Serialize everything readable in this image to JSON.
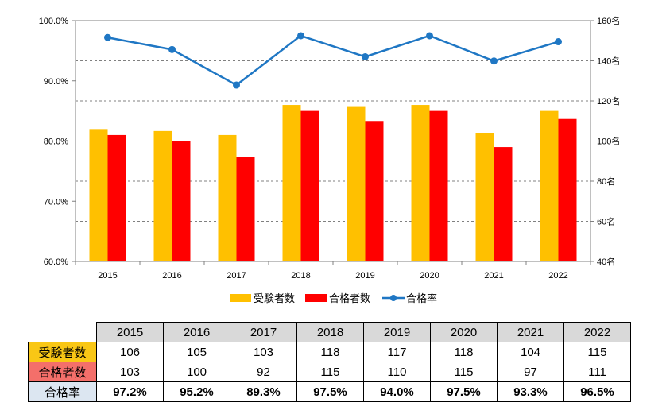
{
  "chart_data": {
    "type": "bar+line",
    "categories": [
      "2015",
      "2016",
      "2017",
      "2018",
      "2019",
      "2020",
      "2021",
      "2022"
    ],
    "series": [
      {
        "name": "受験者数",
        "type": "bar",
        "axis": "right",
        "color": "#ffc000",
        "values": [
          106,
          105,
          103,
          118,
          117,
          118,
          104,
          115
        ]
      },
      {
        "name": "合格者数",
        "type": "bar",
        "axis": "right",
        "color": "#ff0000",
        "values": [
          103,
          100,
          92,
          115,
          110,
          115,
          97,
          111
        ]
      },
      {
        "name": "合格率",
        "type": "line",
        "axis": "left",
        "color": "#1f77c4",
        "values": [
          97.2,
          95.2,
          89.3,
          97.5,
          94.0,
          97.5,
          93.3,
          96.5
        ]
      }
    ],
    "left_axis": {
      "ylim": [
        60,
        100
      ],
      "ticks": [
        "60.0%",
        "70.0%",
        "80.0%",
        "90.0%",
        "100.0%"
      ]
    },
    "right_axis": {
      "ylim": [
        40,
        160
      ],
      "ticks": [
        "40名",
        "60名",
        "80名",
        "100名",
        "120名",
        "140名",
        "160名"
      ]
    },
    "legend_position": "bottom"
  },
  "table": {
    "years": [
      "2015",
      "2016",
      "2017",
      "2018",
      "2019",
      "2020",
      "2021",
      "2022"
    ],
    "rows": [
      {
        "label": "受験者数",
        "cells": [
          "106",
          "105",
          "103",
          "118",
          "117",
          "118",
          "104",
          "115"
        ]
      },
      {
        "label": "合格者数",
        "cells": [
          "103",
          "100",
          "92",
          "115",
          "110",
          "115",
          "97",
          "111"
        ]
      },
      {
        "label": "合格率",
        "cells": [
          "97.2%",
          "95.2%",
          "89.3%",
          "97.5%",
          "94.0%",
          "97.5%",
          "93.3%",
          "96.5%"
        ]
      }
    ]
  }
}
